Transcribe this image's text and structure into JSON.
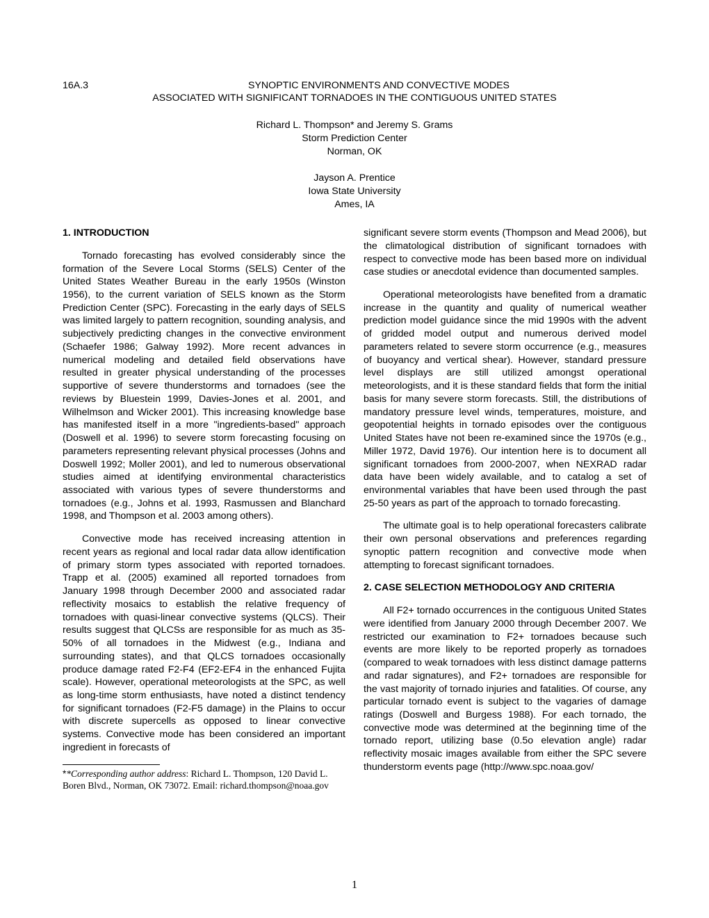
{
  "paper_id": "16A.3",
  "title_line1": "SYNOPTIC ENVIRONMENTS AND CONVECTIVE MODES",
  "title_line2": "ASSOCIATED WITH SIGNIFICANT TORNADOES IN THE CONTIGUOUS UNITED STATES",
  "authors1": "Richard L. Thompson* and Jeremy S. Grams",
  "affil1a": "Storm Prediction Center",
  "affil1b": "Norman, OK",
  "authors2": "Jayson A. Prentice",
  "affil2a": "Iowa State University",
  "affil2b": "Ames, IA",
  "sec1_head": "1.  INTRODUCTION",
  "p1": "Tornado forecasting has evolved considerably since the formation of the Severe Local Storms (SELS) Center of the United States Weather Bureau in the early 1950s (Winston 1956), to the current variation of SELS known as the Storm Prediction Center (SPC). Forecasting in the early days of SELS was limited largely to pattern recognition, sounding analysis, and subjectively predicting changes in the convective environment (Schaefer 1986; Galway 1992).  More recent advances in numerical modeling and detailed field observations have resulted in greater physical understanding of the processes supportive of severe thunderstorms and tornadoes (see the reviews by Bluestein 1999, Davies-Jones et al. 2001, and Wilhelmson and Wicker 2001).  This increasing knowledge base has manifested itself in a more \"ingredients-based\" approach (Doswell et al. 1996) to severe storm forecasting focusing on parameters representing relevant physical processes (Johns and Doswell 1992; Moller 2001), and led to numerous observational studies aimed at identifying environmental characteristics associated with various types of severe thunderstorms and tornadoes (e.g., Johns et al. 1993, Rasmussen and Blanchard 1998, and Thompson et al. 2003 among others).",
  "p2": "Convective mode has received increasing attention in recent years as regional and local radar data allow identification of primary storm types associated with reported tornadoes.  Trapp et al. (2005) examined all reported tornadoes from January 1998 through December 2000 and associated radar reflectivity mosaics to establish the relative frequency of tornadoes with quasi-linear convective systems (QLCS).  Their results suggest that QLCSs are responsible for as much as 35-50% of all tornadoes in the Midwest (e.g., Indiana and surrounding states), and that QLCS tornadoes occasionally produce damage rated F2-F4 (EF2-EF4 in the enhanced Fujita scale).  However, operational meteorologists at the SPC, as well as long-time storm enthusiasts, have noted a distinct tendency for significant tornadoes (F2-F5 damage) in the Plains to occur with discrete supercells as opposed to linear convective systems.  Convective mode has been considered an important ingredient in forecasts of",
  "p3": "significant severe storm events (Thompson and Mead 2006), but the climatological distribution of significant tornadoes with respect to convective mode has been based more on individual case studies or anecdotal evidence than documented samples.",
  "p4": "Operational meteorologists have benefited from a dramatic increase in the quantity and quality of numerical weather prediction model guidance since the mid 1990s with the advent of gridded model output and numerous derived model parameters related to severe storm occurrence (e.g., measures of buoyancy and vertical shear).  However, standard pressure level displays are still utilized amongst operational meteorologists, and it is these standard fields that form the initial basis for many severe storm forecasts.  Still, the distributions of mandatory pressure level winds, temperatures, moisture, and geopotential heights in tornado episodes over the contiguous United States have not been re-examined since the 1970s (e.g., Miller 1972, David 1976).  Our intention here is to document all significant tornadoes from 2000-2007, when NEXRAD radar data have been widely available, and to catalog a set of environmental variables that have been used through the past 25-50 years as part of the approach to tornado forecasting.",
  "p5": "The ultimate goal is to help operational forecasters calibrate their own personal observations and preferences regarding synoptic pattern recognition and convective mode when attempting to forecast significant tornadoes.",
  "sec2_head": "2. CASE SELECTION METHODOLOGY AND CRITERIA",
  "p6": "All F2+ tornado occurrences in the contiguous United States were identified from January 2000 through December 2007.  We restricted our examination to F2+ tornadoes because such events are more likely to be reported properly as tornadoes (compared to weak tornadoes with less distinct damage patterns and radar signatures), and F2+ tornadoes are responsible for the vast majority of tornado injuries and fatalities.  Of course, any particular tornado event is subject to the vagaries of damage ratings (Doswell and Burgess 1988).  For each tornado, the convective mode was determined at the beginning time of the tornado report, utilizing base (0.5o elevation angle) radar reflectivity mosaic images available from either the SPC severe thunderstorm events page (http://www.spc.noaa.gov/",
  "footnote_label": "*Corresponding author address",
  "footnote_text": ":  Richard L. Thompson, 120 David L. Boren Blvd., Norman, OK 73072.  Email: richard.thompson@noaa.gov",
  "page_number": "1"
}
